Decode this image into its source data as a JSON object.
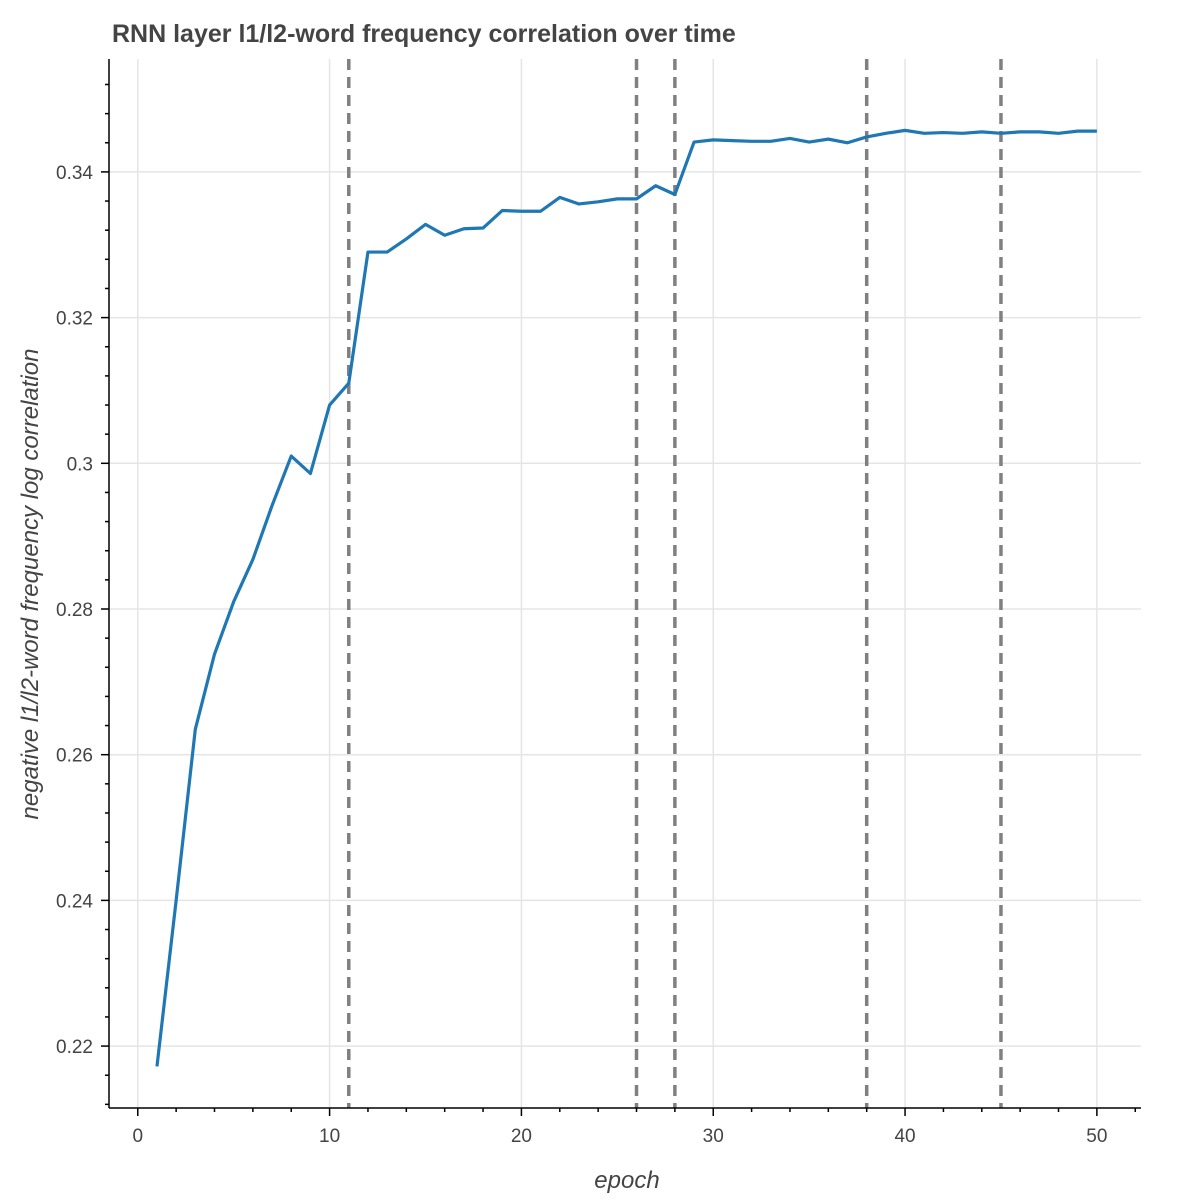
{
  "chart_data": {
    "type": "line",
    "title": "RNN layer l1/l2-word frequency correlation over time",
    "xlabel": "epoch",
    "ylabel": "negative l1/l2-word frequency log correlation",
    "xlim": [
      -1.5,
      52.3
    ],
    "ylim": [
      0.2115,
      0.3555
    ],
    "x_ticks": [
      0,
      10,
      20,
      30,
      40,
      50
    ],
    "x_tick_labels": [
      "0",
      "10",
      "20",
      "30",
      "40",
      "50"
    ],
    "y_ticks": [
      0.22,
      0.24,
      0.26,
      0.28,
      0.3,
      0.32,
      0.34
    ],
    "y_tick_labels": [
      "0.22",
      "0.24",
      "0.26",
      "0.28",
      "0.3",
      "0.32",
      "0.34"
    ],
    "grid": true,
    "line_color": "#1f77b4",
    "vline_color": "#808080",
    "vlines": [
      11,
      26,
      28,
      38,
      45
    ],
    "series": [
      {
        "x": [
          1,
          2,
          3,
          4,
          5,
          6,
          7,
          8,
          9,
          10,
          11,
          12,
          13,
          14,
          15,
          16,
          17,
          18,
          19,
          20,
          21,
          22,
          23,
          24,
          25,
          26,
          27,
          28,
          29,
          30,
          31,
          32,
          33,
          34,
          35,
          36,
          37,
          38,
          39,
          40,
          41,
          42,
          43,
          44,
          45,
          46,
          47,
          48,
          49,
          50
        ],
        "y": [
          0.2172,
          0.24,
          0.2635,
          0.2738,
          0.281,
          0.2868,
          0.2942,
          0.301,
          0.2986,
          0.308,
          0.311,
          0.329,
          0.329,
          0.3308,
          0.3328,
          0.3313,
          0.3322,
          0.3323,
          0.3347,
          0.3346,
          0.3346,
          0.3365,
          0.3356,
          0.3359,
          0.3363,
          0.3363,
          0.3381,
          0.3369,
          0.3441,
          0.3444,
          0.3443,
          0.3442,
          0.3442,
          0.3446,
          0.3441,
          0.3445,
          0.344,
          0.3448,
          0.3453,
          0.3457,
          0.3453,
          0.3454,
          0.3453,
          0.3455,
          0.3453,
          0.3455,
          0.3455,
          0.3453,
          0.3456,
          0.3456
        ]
      }
    ]
  }
}
